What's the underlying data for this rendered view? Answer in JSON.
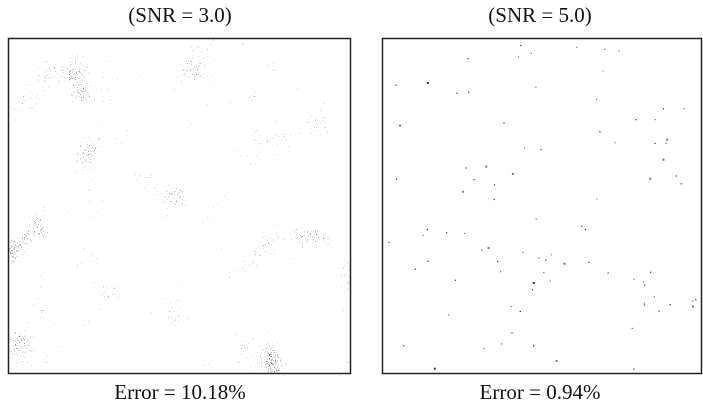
{
  "panels": [
    {
      "title": "(SNR = 3.0)",
      "caption": "Error = 10.18%"
    },
    {
      "title": "(SNR = 5.0)",
      "caption": "Error = 0.94%"
    }
  ]
}
